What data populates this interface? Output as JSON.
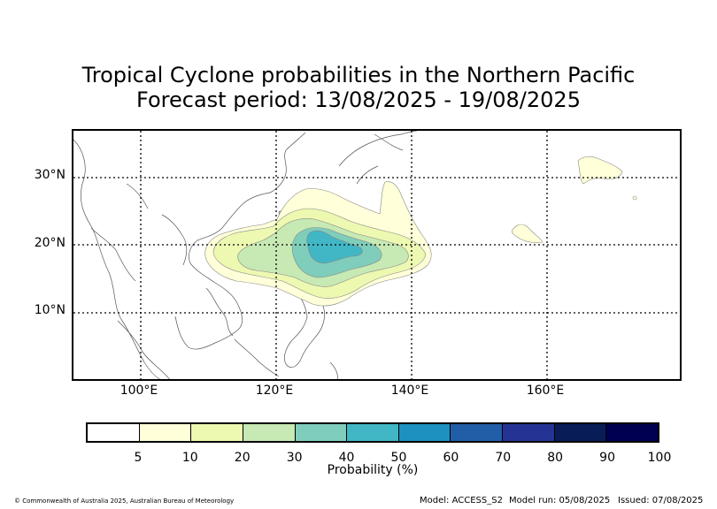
{
  "title": {
    "line1": "Tropical Cyclone probabilities in the Northern Pacific",
    "line2": "Forecast period: 13/08/2025 - 19/08/2025"
  },
  "map": {
    "lat_labels": [
      "30°N",
      "20°N",
      "10°N"
    ],
    "lon_labels": [
      "100°E",
      "120°E",
      "140°E",
      "160°E"
    ],
    "gridlines": "dotted",
    "land_color": "#ffffff",
    "coast_color": "#555555"
  },
  "colorbar": {
    "label": "Probability (%)",
    "ticks": [
      "5",
      "10",
      "20",
      "30",
      "40",
      "50",
      "60",
      "70",
      "80",
      "90",
      "100"
    ],
    "colors": [
      "#ffffff",
      "#ffffd9",
      "#edf8b1",
      "#c7e9b4",
      "#7fcdbb",
      "#41b6c4",
      "#1d91c0",
      "#225ea8",
      "#253494",
      "#081d58",
      "#000050"
    ]
  },
  "footer": {
    "copyright": "© Commonwealth of Australia 2025, Australian Bureau of Meteorology",
    "model": "Model: ACCESS_S2",
    "model_run": "Model run: 05/08/2025",
    "issued": "Issued: 07/08/2025"
  }
}
